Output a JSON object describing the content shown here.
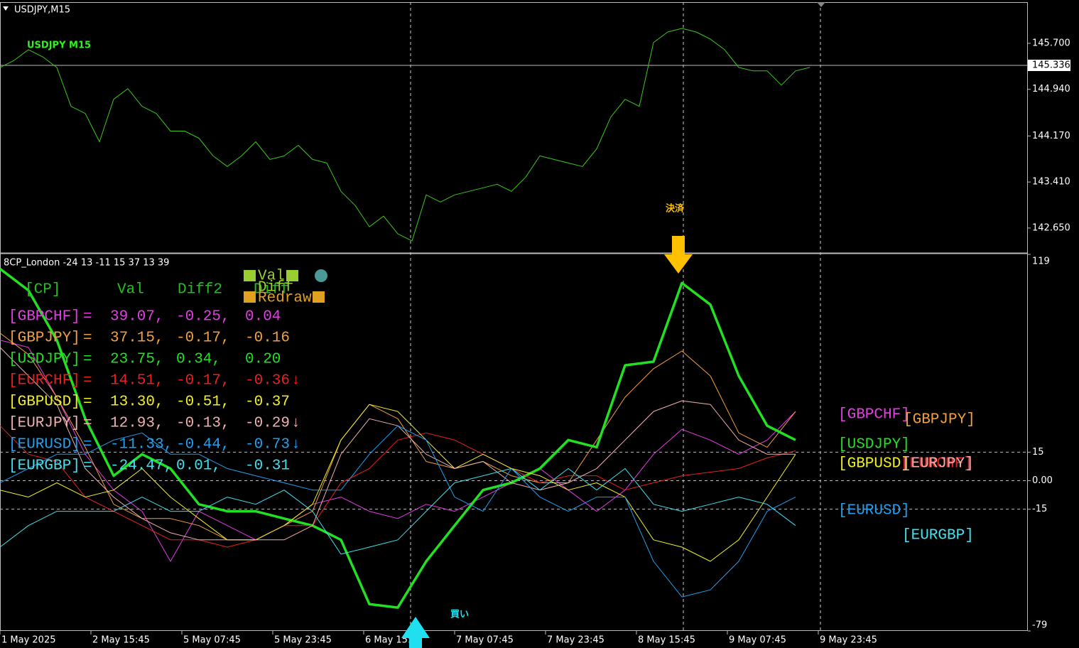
{
  "window_label": "USDJPY,M15",
  "chart_data": [
    {
      "type": "line",
      "title": "USDJPY  M15",
      "color": "#3cc81c",
      "ylim": [
        142.25,
        146.38
      ],
      "xlim": [
        0,
        72.35
      ],
      "yticks": [
        {
          "value": 145.7,
          "label": "145.700"
        },
        {
          "value": 144.94,
          "label": "144.940"
        },
        {
          "value": 144.17,
          "label": "144.170"
        },
        {
          "value": 143.41,
          "label": "143.410"
        },
        {
          "value": 142.65,
          "label": "142.650"
        }
      ],
      "current_price": {
        "value": 145.336,
        "label": "145.336"
      },
      "values": [
        145.302,
        145.419,
        145.595,
        145.478,
        145.302,
        144.659,
        144.542,
        144.074,
        144.776,
        144.951,
        144.659,
        144.542,
        144.25,
        144.25,
        144.133,
        143.841,
        143.666,
        143.841,
        144.074,
        143.782,
        143.841,
        144.016,
        143.782,
        143.724,
        143.256,
        143.022,
        142.671,
        142.846,
        142.554,
        142.437,
        143.197,
        143.08,
        143.197,
        143.256,
        143.314,
        143.373,
        143.256,
        143.49,
        143.841,
        143.782,
        143.724,
        143.666,
        143.957,
        144.484,
        144.776,
        144.659,
        145.712,
        145.887,
        145.946,
        145.887,
        145.77,
        145.595,
        145.302,
        145.244,
        145.244,
        145.01,
        145.244,
        145.302
      ]
    },
    {
      "type": "line",
      "title": "8CP_London -24 13 -11 15 37 13 39",
      "ylim": [
        -79,
        119
      ],
      "xlim": [
        0,
        72.35
      ],
      "grid": true,
      "yticks": [
        119,
        15,
        {
          "value": 0,
          "label": "0.00"
        },
        -15,
        -79
      ],
      "xticks": [
        {
          "value": 0,
          "label": "1 May 2025"
        },
        {
          "value": 6.4,
          "label": "2 May 15:45"
        },
        {
          "value": 12.8,
          "label": "5 May 07:45"
        },
        {
          "value": 19.2,
          "label": "5 May 23:45"
        },
        {
          "value": 25.6,
          "label": "6 May 15:45"
        },
        {
          "value": 32,
          "label": "7 May 07:45"
        },
        {
          "value": 38.4,
          "label": "7 May 23:45"
        },
        {
          "value": 44.8,
          "label": "8 May 15:45"
        },
        {
          "value": 51.2,
          "label": "9 May 07:45"
        },
        {
          "value": 57.6,
          "label": "9 May 23:45"
        }
      ],
      "x": [
        0,
        2,
        4,
        6,
        8,
        10,
        12,
        14,
        16,
        18,
        20,
        22,
        24,
        26,
        28,
        30,
        32,
        34,
        36,
        38,
        40,
        42,
        44,
        46,
        48,
        50,
        52,
        54,
        56
      ],
      "series": [
        {
          "name": "[GBPCHF]",
          "color": "#e63ce6",
          "values": [
            73.9,
            70.1,
            43.9,
            13.9,
            -4.9,
            -16.1,
            -42.4,
            -16.1,
            -23.6,
            -31.1,
            -23.6,
            -12.4,
            -8.6,
            -16.1,
            -19.9,
            -12.4,
            -16.1,
            -8.6,
            -1.1,
            6.4,
            -4.9,
            -16.1,
            -4.9,
            13.9,
            27.0,
            21.4,
            13.9,
            21.4,
            36.4
          ]
        },
        {
          "name": "[GBPJPY]",
          "color": "#f0a040",
          "values": [
            77.6,
            66.4,
            43.9,
            17.6,
            -12.4,
            -19.9,
            -19.9,
            -23.6,
            -31.1,
            -31.1,
            -23.6,
            -16.1,
            21.4,
            40.1,
            32.6,
            10.1,
            6.4,
            10.1,
            2.6,
            -1.1,
            -1.1,
            21.4,
            43.9,
            58.9,
            68.2,
            55.1,
            25.1,
            17.6,
            36.4
          ]
        },
        {
          "name": "[USDJPY]",
          "color": "#22e022",
          "values": [
            111.4,
            100.1,
            73.9,
            32.6,
            2.6,
            13.9,
            6.4,
            -12.4,
            -16.1,
            -16.1,
            -19.9,
            -23.6,
            -31.1,
            -64.9,
            -66.7,
            -42.4,
            -23.6,
            -4.9,
            -1.1,
            6.4,
            21.4,
            17.6,
            60.7,
            62.6,
            103.9,
            92.6,
            55.1,
            28.9,
            21.4
          ]
        },
        {
          "name": "[EURCHF]",
          "color": "#e82020",
          "values": [
            28.9,
            13.9,
            10.1,
            -8.6,
            -16.1,
            -23.6,
            -31.1,
            -31.1,
            -34.9,
            -31.1,
            -23.6,
            -23.6,
            -1.1,
            6.4,
            21.4,
            25.1,
            21.4,
            13.9,
            6.4,
            -1.1,
            2.6,
            2.6,
            -4.9,
            -1.1,
            2.6,
            4.5,
            6.4,
            12.0,
            15.7
          ]
        },
        {
          "name": "[GBPUSD]",
          "color": "#f0f020",
          "values": [
            -4.9,
            -8.6,
            -1.1,
            -8.6,
            -4.9,
            6.4,
            -8.6,
            -19.9,
            -31.1,
            -31.1,
            -23.6,
            -12.4,
            21.4,
            40.1,
            36.4,
            21.4,
            6.4,
            13.9,
            6.4,
            2.6,
            -4.9,
            -1.1,
            -8.6,
            -31.1,
            -34.9,
            -42.4,
            -31.1,
            -8.6,
            13.9
          ]
        },
        {
          "name": "[EURJPY]",
          "color": "#f0b0b0",
          "values": [
            70.1,
            55.1,
            40.1,
            6.4,
            -8.6,
            -19.9,
            -27.4,
            -31.1,
            -31.1,
            -31.1,
            -31.1,
            -23.6,
            13.9,
            32.6,
            28.9,
            13.9,
            6.4,
            10.1,
            -1.1,
            -4.9,
            -1.1,
            6.4,
            21.4,
            36.4,
            42.0,
            40.1,
            21.4,
            13.9,
            13.9
          ]
        },
        {
          "name": "[EURUSD]",
          "color": "#20a0f0",
          "values": [
            -1.1,
            6.4,
            13.9,
            13.9,
            21.4,
            25.1,
            13.9,
            13.9,
            6.4,
            2.6,
            -1.1,
            -4.9,
            -4.9,
            13.9,
            28.9,
            21.4,
            -8.6,
            -16.1,
            6.4,
            -8.6,
            -16.1,
            -8.6,
            -8.6,
            -42.4,
            -61.1,
            -57.4,
            -42.4,
            -16.1,
            -8.6
          ]
        },
        {
          "name": "[EURGBP]",
          "color": "#40e0f0",
          "values": [
            -34.9,
            -23.6,
            -16.1,
            -16.1,
            -16.1,
            -8.6,
            -16.1,
            -16.1,
            -8.6,
            -12.4,
            -4.9,
            -16.1,
            -38.6,
            -34.9,
            -31.1,
            -16.1,
            -1.1,
            2.6,
            6.4,
            -4.9,
            6.4,
            -4.9,
            6.4,
            -12.4,
            -16.1,
            -12.4,
            -8.6,
            -12.4,
            -23.6
          ]
        }
      ],
      "table": {
        "header": [
          "[CP]",
          "Val",
          "Diff2",
          "Diff"
        ],
        "rows": [
          [
            "[GBPCHF]",
            "=",
            "39.07,",
            "-0.25,",
            "0.04"
          ],
          [
            "[GBPJPY]",
            "=",
            "37.15,",
            "-0.17,",
            "-0.16"
          ],
          [
            "[USDJPY]",
            "=",
            "23.75,",
            "0.34,",
            "0.20"
          ],
          [
            "[EURCHF]",
            "=",
            "14.51,",
            "-0.17,",
            "-0.36",
            "↓"
          ],
          [
            "[GBPUSD]",
            "=",
            "13.30,",
            "-0.51,",
            "-0.37"
          ],
          [
            "[EURJPY]",
            "=",
            "12.93,",
            "-0.13,",
            "-0.29",
            "↓"
          ],
          [
            "[EURUSD]",
            "=",
            "-11.33,",
            "-0.44,",
            "-0.73",
            "↓"
          ],
          [
            "[EURGBP]",
            "=",
            "-24.47,",
            "0.01,",
            "-0.31"
          ]
        ]
      },
      "buttons": [
        "Val",
        "Diff",
        "Redraw"
      ],
      "annotations": [
        "決済",
        "買い"
      ]
    }
  ]
}
